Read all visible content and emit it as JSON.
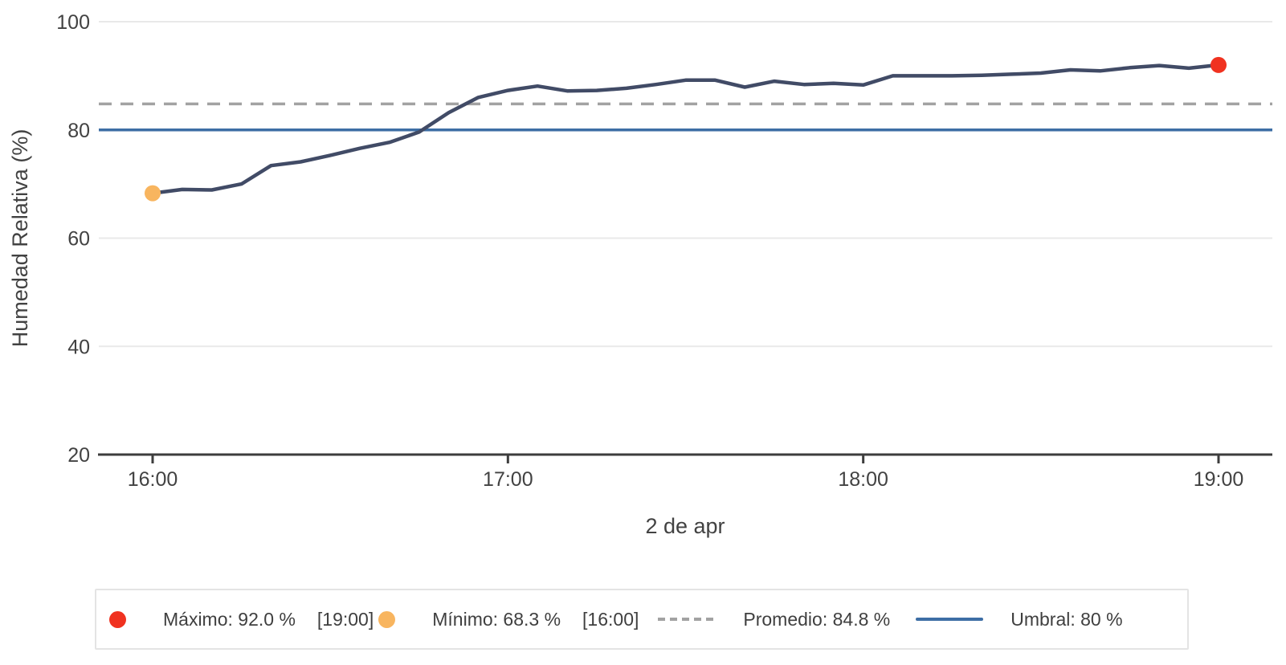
{
  "chart_data": {
    "type": "line",
    "title": "",
    "xlabel": "2 de apr",
    "ylabel": "Humedad Relativa (%)",
    "ylim": [
      20,
      100
    ],
    "y_ticks": [
      100,
      80,
      60,
      40,
      20
    ],
    "x_ticks": [
      {
        "minutes": 0,
        "label": "16:00"
      },
      {
        "minutes": 60,
        "label": "17:00"
      },
      {
        "minutes": 120,
        "label": "18:00"
      },
      {
        "minutes": 180,
        "label": "19:00"
      }
    ],
    "grid": "horizontal-light",
    "legend_position": "bottom",
    "series": [
      {
        "name": "Humedad Relativa",
        "color": "#414b66",
        "x_minutes": [
          0,
          5,
          10,
          15,
          20,
          25,
          30,
          35,
          40,
          45,
          50,
          55,
          60,
          65,
          70,
          75,
          80,
          85,
          90,
          95,
          100,
          105,
          110,
          115,
          120,
          125,
          130,
          135,
          140,
          145,
          150,
          155,
          160,
          165,
          170,
          175,
          180
        ],
        "values": [
          68.3,
          69.0,
          68.9,
          70.0,
          73.4,
          74.1,
          75.3,
          76.6,
          77.7,
          79.6,
          83.2,
          86.0,
          87.3,
          88.1,
          87.2,
          87.3,
          87.7,
          88.4,
          89.2,
          89.2,
          87.9,
          89.0,
          88.4,
          88.6,
          88.3,
          90.0,
          90.0,
          90.0,
          90.1,
          90.3,
          90.5,
          91.1,
          90.9,
          91.5,
          91.9,
          91.4,
          92.0
        ]
      }
    ],
    "reference_lines": [
      {
        "name": "Promedio",
        "value": 84.8,
        "style": "dashed",
        "color": "#a2a2a2"
      },
      {
        "name": "Umbral",
        "value": 80,
        "style": "solid",
        "color": "#3d6ea5"
      }
    ],
    "point_markers": [
      {
        "name": "min",
        "x_minutes": 0,
        "value": 68.3,
        "color": "#f8b55f"
      },
      {
        "name": "max",
        "x_minutes": 180,
        "value": 92.0,
        "color": "#f03220"
      }
    ]
  },
  "axis": {
    "y_label": "Humedad Relativa (%)",
    "x_label": "2 de apr"
  },
  "legend": {
    "items": [
      {
        "marker": "dot",
        "color": "#f03220",
        "label": "Máximo: 92.0 %",
        "time": "[19:00]"
      },
      {
        "marker": "dot",
        "color": "#f8b55f",
        "label": "Mínimo: 68.3 %",
        "time": "[16:00]"
      },
      {
        "marker": "dashes",
        "color": "#a2a2a2",
        "label": "Promedio: 84.8 %",
        "time": ""
      },
      {
        "marker": "line",
        "color": "#3d6ea5",
        "label": "Umbral: 80 %",
        "time": ""
      }
    ]
  },
  "colors": {
    "series_line": "#414b66",
    "max_point": "#f03220",
    "min_point": "#f8b55f",
    "umbral_line": "#3d6ea5",
    "promedio_line": "#a2a2a2",
    "axis_line": "#3d3d3d",
    "tick_text": "#424242",
    "grid_line": "#e9e9e9"
  }
}
